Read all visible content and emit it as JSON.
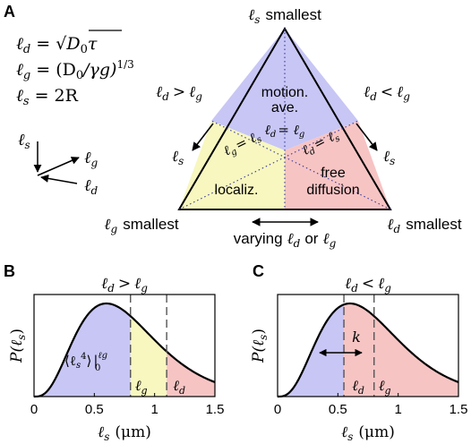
{
  "panel_a": {
    "letter": "A",
    "definitions": {
      "ld_lhs": "ℓ",
      "ld_sub": "d",
      "ld_rhs": "= √",
      "ld_rad": "D",
      "ld_rad_sub": "0",
      "ld_rad_tau": "τ",
      "lg_lhs": "ℓ",
      "lg_sub": "g",
      "lg_rhs": "= (D",
      "lg_rhs_sub": "0",
      "lg_rhs_tail": "/γg)",
      "lg_exp": "1/3",
      "ls_lhs": "ℓ",
      "ls_sub": "s",
      "ls_rhs": "= 2R"
    },
    "axes_legend": {
      "ls": "s",
      "lg": "g",
      "ld": "d",
      "ell": "ℓ"
    },
    "vertices": {
      "top": "smallest",
      "left": "smallest",
      "right": "smallest"
    },
    "regions": {
      "motional_line1": "motion.",
      "motional_line2": "ave.",
      "localization": "localiz.",
      "free_line1": "free",
      "free_line2": "diffusion"
    },
    "boundaries": {
      "ld_eq_lg": "= ",
      "lg_eq_ls": "= ",
      "ld_eq_ls": "= "
    },
    "side_labels": {
      "left_condition": ">",
      "right_condition": "<"
    },
    "bottom_label": {
      "prefix": "varying",
      "or": "or"
    },
    "colors": {
      "blue": "#c7c6f5",
      "yellow": "#f7f7bf",
      "red": "#f7c4c4"
    }
  },
  "panel_b": {
    "letter": "B",
    "title_op": ">",
    "ylabel": "P(ℓ",
    "xlabel_unit": "(μm)",
    "xticks": [
      "0",
      "0.5",
      "1",
      "1.5"
    ],
    "lg_marker": 0.8,
    "ld_marker": 1.1,
    "moment_label": "⟨ℓ",
    "moment_sup": "4",
    "moment_close": "⟩",
    "moment_top": "ℓg",
    "moment_bottom": "0"
  },
  "panel_c": {
    "letter": "C",
    "title_op": "<",
    "ylabel": "P(ℓ",
    "xlabel_unit": "(μm)",
    "xticks": [
      "0",
      "0.5",
      "1",
      "1.5"
    ],
    "ld_marker": 0.55,
    "lg_marker": 0.8,
    "k_label": "k"
  },
  "chart_data": [
    {
      "type": "area",
      "title": "ℓd > ℓg",
      "xlabel": "ℓs (μm)",
      "ylabel": "P(ℓs)",
      "xlim": [
        0,
        1.5
      ],
      "xticks": [
        0,
        0.5,
        1,
        1.5
      ],
      "peak_x": 0.6,
      "markers": [
        {
          "name": "ℓg",
          "x": 0.8
        },
        {
          "name": "ℓd",
          "x": 1.1
        }
      ],
      "regions": [
        {
          "from": 0,
          "to": 0.8,
          "color": "#c7c6f5"
        },
        {
          "from": 0.8,
          "to": 1.1,
          "color": "#f7f7bf"
        },
        {
          "from": 1.1,
          "to": 1.5,
          "color": "#f7c4c4"
        }
      ]
    },
    {
      "type": "area",
      "title": "ℓd < ℓg",
      "xlabel": "ℓs (μm)",
      "ylabel": "P(ℓs)",
      "xlim": [
        0,
        1.5
      ],
      "xticks": [
        0,
        0.5,
        1,
        1.5
      ],
      "peak_x": 0.6,
      "markers": [
        {
          "name": "ℓd",
          "x": 0.55
        },
        {
          "name": "ℓg",
          "x": 0.8
        }
      ],
      "regions": [
        {
          "from": 0,
          "to": 0.55,
          "color": "#c7c6f5"
        },
        {
          "from": 0.55,
          "to": 1.5,
          "color": "#f7c4c4"
        }
      ]
    }
  ]
}
